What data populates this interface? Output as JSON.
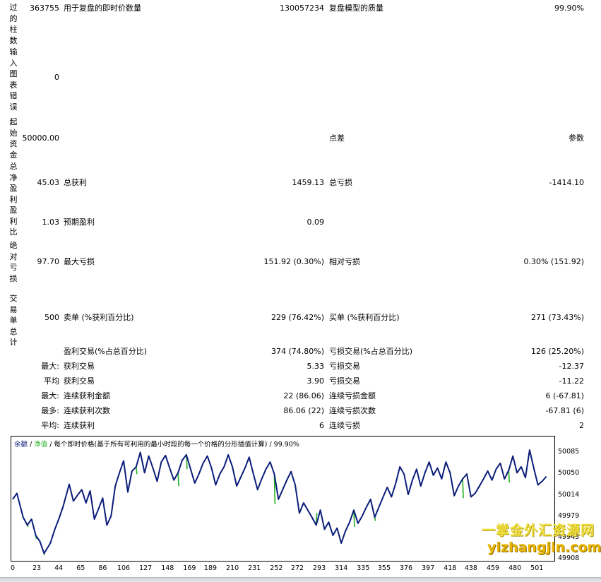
{
  "side_labels": [
    "过的柱数",
    "输入图表错误",
    "起始资金",
    "总净盈利",
    "盈利比",
    "绝对亏损",
    "交易单总计"
  ],
  "rows": {
    "r1": {
      "v1": "363755",
      "l2": "用于复盘的即时价数量",
      "v2": "130057234",
      "l3": "复盘模型的质量",
      "v3": "99.90%"
    },
    "r2": {
      "v1": "0"
    },
    "r3": {
      "v1": "50000.00",
      "l3": "点差",
      "v3": "参数"
    },
    "r4": {
      "v1": "45.03",
      "l2": "总获利",
      "v2": "1459.13",
      "l3": "总亏损",
      "v3": "-1414.10"
    },
    "r5": {
      "v1": "1.03",
      "l2": "预期盈利",
      "v2": "0.09"
    },
    "r6": {
      "v1": "97.70",
      "l2": "最大亏损",
      "v2": "151.92 (0.30%)",
      "l3": "相对亏损",
      "v3": "0.30% (151.92)"
    },
    "r7": {
      "v1": "500",
      "l2": "卖单 (%获利百分比)",
      "v2": "229 (76.42%)",
      "l3": "买单 (%获利百分比)",
      "v3": "271 (73.43%)"
    },
    "r8": {
      "l2": "盈利交易(%占总百分比)",
      "v2": "374 (74.80%)",
      "l3": "亏损交易(%占总百分比)",
      "v3": "126 (25.20%)"
    },
    "r9": {
      "l1": "最大:",
      "l2": "获利交易",
      "v2": "5.33",
      "l3": "亏损交易",
      "v3": "-12.37"
    },
    "r10": {
      "l1": "平均",
      "l2": "获利交易",
      "v2": "3.90",
      "l3": "亏损交易",
      "v3": "-11.22"
    },
    "r11": {
      "l1": "最大:",
      "l2": "连续获利金额",
      "v2": "22 (86.06)",
      "l3": "连续亏损金额",
      "v3": "6 (-67.81)"
    },
    "r12": {
      "l1": "最多:",
      "l2": "连续获利次数",
      "v2": "86.06 (22)",
      "l3": "连续亏损次数",
      "v3": "-67.81 (6)"
    },
    "r13": {
      "l1": "平均:",
      "l2": "连续获利",
      "v2": "6",
      "l3": "连续亏损",
      "v3": "2"
    }
  },
  "chart": {
    "legend_balance": "余额",
    "sep1": " / ",
    "legend_equity": "净值",
    "rest": " / 每个即时价格(基于所有可利用的最小时段的每一个价格的分形插值计算) / 99.90%"
  },
  "chart_data": {
    "type": "line",
    "x_ticks": [
      "0",
      "23",
      "44",
      "65",
      "86",
      "106",
      "127",
      "148",
      "169",
      "189",
      "210",
      "231",
      "252",
      "272",
      "293",
      "314",
      "335",
      "355",
      "376",
      "397",
      "418",
      "438",
      "459",
      "480",
      "501"
    ],
    "y_ticks": [
      "50085",
      "50050",
      "50014",
      "49979",
      "49943",
      "49908"
    ],
    "xlim": [
      0,
      515
    ],
    "ylim": [
      49908,
      50096
    ],
    "series": [
      {
        "name": "余额",
        "color": "#0b1d7a",
        "x": [
          0,
          4,
          10,
          14,
          18,
          22,
          26,
          30,
          36,
          40,
          44,
          48,
          54,
          58,
          62,
          66,
          70,
          74,
          78,
          82,
          86,
          90,
          94,
          98,
          102,
          106,
          110,
          114,
          118,
          122,
          126,
          130,
          134,
          138,
          142,
          146,
          150,
          154,
          158,
          162,
          166,
          170,
          174,
          178,
          182,
          186,
          190,
          194,
          198,
          202,
          206,
          210,
          214,
          218,
          222,
          226,
          230,
          234,
          238,
          242,
          246,
          250,
          254,
          258,
          262,
          266,
          270,
          274,
          278,
          282,
          286,
          290,
          294,
          298,
          302,
          306,
          310,
          314,
          318,
          322,
          326,
          330,
          334,
          338,
          342,
          346,
          350,
          354,
          358,
          362,
          366,
          370,
          374,
          378,
          382,
          386,
          390,
          394,
          398,
          402,
          406,
          410,
          414,
          418,
          422,
          426,
          430,
          434,
          438,
          442,
          446,
          450,
          454,
          458,
          462,
          466,
          470,
          474,
          478,
          482,
          486,
          490,
          494,
          498,
          502,
          506,
          510
        ],
        "y": [
          50008,
          50018,
          49978,
          49965,
          49975,
          49948,
          49938,
          49918,
          49935,
          49957,
          49975,
          49995,
          50033,
          50005,
          50015,
          50024,
          50002,
          50022,
          49975,
          49992,
          50010,
          49965,
          49980,
          50030,
          50052,
          50072,
          50020,
          50055,
          50062,
          50086,
          50052,
          50080,
          50060,
          50038,
          50070,
          50081,
          50060,
          50040,
          50052,
          50073,
          50082,
          50058,
          50035,
          50050,
          50068,
          50080,
          50060,
          50032,
          50050,
          50062,
          50082,
          50062,
          50030,
          50045,
          50060,
          50078,
          50050,
          50024,
          50042,
          50058,
          50070,
          50050,
          50008,
          50024,
          50040,
          50054,
          50032,
          49985,
          50002,
          49990,
          49978,
          49965,
          49990,
          49958,
          49970,
          49948,
          49960,
          49935,
          49955,
          49970,
          49990,
          49968,
          49980,
          49995,
          50008,
          49978,
          49995,
          50012,
          50028,
          50012,
          50034,
          50062,
          50050,
          50016,
          50040,
          50058,
          50030,
          50052,
          50070,
          50048,
          50060,
          50042,
          50070,
          50052,
          50014,
          50030,
          50042,
          50050,
          50012,
          50018,
          50030,
          50042,
          50055,
          50040,
          50058,
          50068,
          50042,
          50056,
          50080,
          50052,
          50062,
          50044,
          50090,
          50060,
          50032,
          50038,
          50046
        ]
      },
      {
        "name": "净值",
        "color": "#20b020",
        "x": [
          14,
          22,
          30,
          118,
          158,
          166,
          250,
          290,
          326,
          346,
          430,
          446,
          474
        ],
        "y": [
          49962,
          49942,
          49915,
          50050,
          50030,
          50058,
          50000,
          49985,
          49962,
          49972,
          50010,
          50028,
          50036
        ]
      }
    ]
  },
  "watermark": {
    "line1": "一掌金外汇资源网",
    "line2": "yizhangjin.com"
  }
}
